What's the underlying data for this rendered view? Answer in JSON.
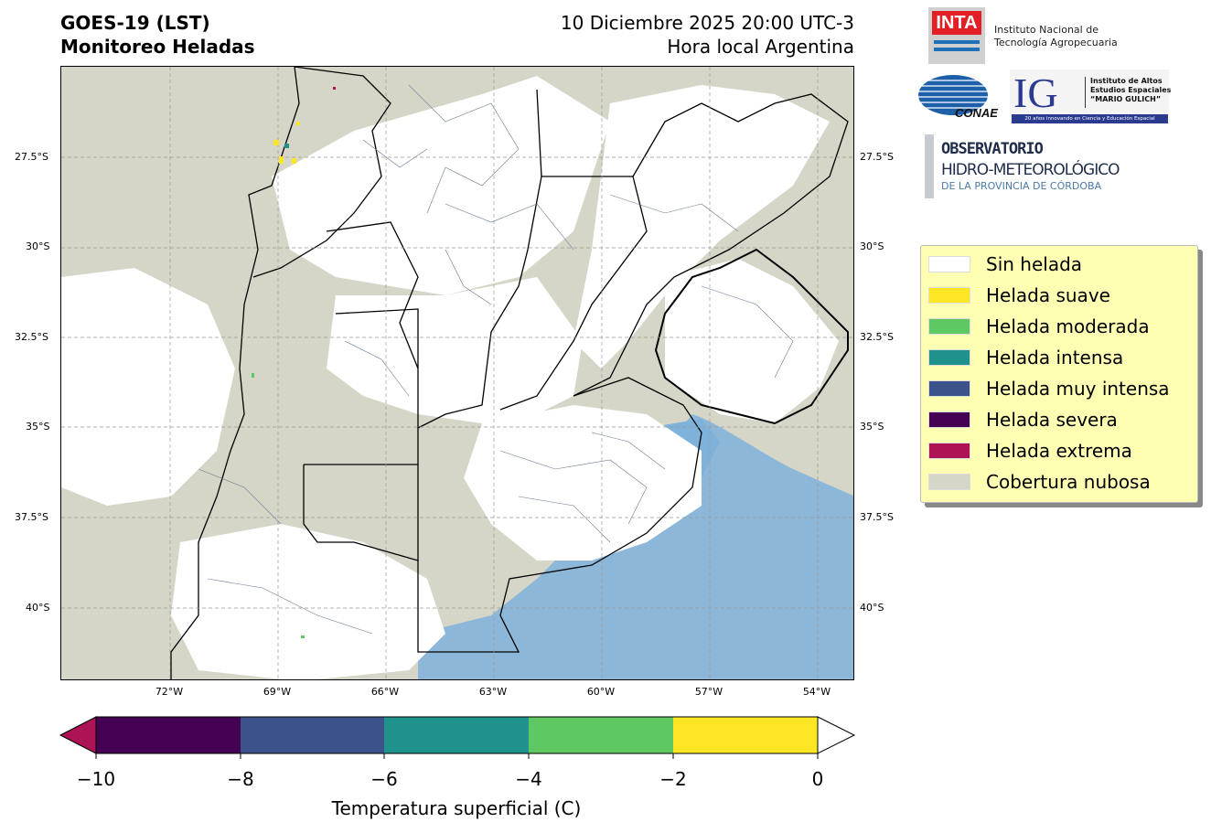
{
  "header": {
    "title_line1": "GOES-19 (LST)",
    "title_line2": "Monitoreo Heladas",
    "date_line": "10 Diciembre 2025 20:00 UTC-3",
    "time_note": "Hora local Argentina"
  },
  "map": {
    "lat_labels": [
      "27.5°S",
      "30°S",
      "32.5°S",
      "35°S",
      "37.5°S",
      "40°S"
    ],
    "lon_labels": [
      "72°W",
      "69°W",
      "66°W",
      "63°W",
      "60°W",
      "57°W",
      "54°W"
    ],
    "colors": {
      "land_clear": "#ffffff",
      "cloud": "#d6d6c8",
      "water": "#7fb2da",
      "border": "#000000",
      "district": "#6a7a90",
      "grid": "#999999"
    }
  },
  "legend": {
    "items": [
      {
        "label": "Sin helada",
        "color": "#ffffff"
      },
      {
        "label": "Helada suave",
        "color": "#fde725"
      },
      {
        "label": "Helada moderada",
        "color": "#5ec962"
      },
      {
        "label": "Helada intensa",
        "color": "#21918c"
      },
      {
        "label": "Helada muy intensa",
        "color": "#3b528b"
      },
      {
        "label": "Helada severa",
        "color": "#440154"
      },
      {
        "label": "Helada extrema",
        "color": "#ad1456"
      },
      {
        "label": "Cobertura nubosa",
        "color": "#d6d6c8"
      }
    ]
  },
  "colorbar": {
    "label": "Temperatura superficial (C)",
    "ticks": [
      "−10",
      "−8",
      "−6",
      "−4",
      "−2",
      "0"
    ],
    "segments": [
      "#440154",
      "#3b528b",
      "#21918c",
      "#5ec962",
      "#fde725"
    ],
    "under_color": "#ad1456",
    "over_color": "#ffffff"
  },
  "logos": {
    "inta_mark": "INTA",
    "inta_name_line1": "Instituto Nacional de",
    "inta_name_line2": "Tecnología Agropecuaria",
    "conae_mark": "CONAE",
    "ig_mark": "IG",
    "ig_line1": "Instituto de Altos",
    "ig_line2": "Estudios Espaciales",
    "ig_line3": "“MARIO GULICH”",
    "ig_tagline": "20 años innovando en Ciencia y Educación Espacial",
    "obs_line1": "OBSERVATORIO",
    "obs_line2": "HIDRO-METEOROLÓGICO",
    "obs_line3": "DE LA PROVINCIA DE CÓRDOBA"
  }
}
